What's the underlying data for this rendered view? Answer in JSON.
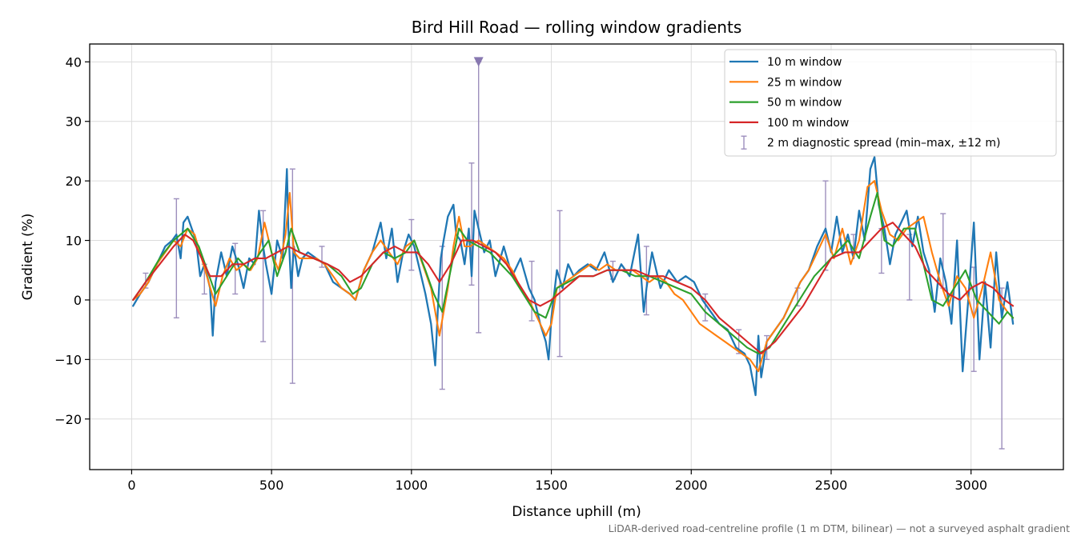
{
  "chart_data": {
    "type": "line",
    "title": "Bird Hill Road — rolling window gradients",
    "xlabel": "Distance uphill (m)",
    "ylabel": "Gradient (%)",
    "footnote": "LiDAR-derived road-centreline profile (1 m DTM, bilinear) — not a surveyed asphalt gradient",
    "xlim": [
      -150,
      3330
    ],
    "ylim": [
      -28.5,
      43
    ],
    "xticks": [
      0,
      500,
      1000,
      1500,
      2000,
      2500,
      3000
    ],
    "yticks": [
      -20,
      -10,
      0,
      10,
      20,
      30,
      40
    ],
    "xtick_labels": [
      "0",
      "500",
      "1000",
      "1500",
      "2000",
      "2500",
      "3000"
    ],
    "ytick_labels": [
      "−20",
      "−10",
      "0",
      "10",
      "20",
      "30",
      "40"
    ],
    "grid": true,
    "legend_position": "top-right",
    "series": [
      {
        "name": "10 m window",
        "color": "#1f77b4",
        "x": [
          5,
          30,
          60,
          90,
          120,
          145,
          160,
          175,
          185,
          200,
          215,
          230,
          245,
          260,
          280,
          290,
          300,
          320,
          340,
          360,
          380,
          400,
          420,
          440,
          455,
          470,
          480,
          500,
          520,
          540,
          555,
          560,
          570,
          580,
          595,
          610,
          630,
          660,
          690,
          720,
          750,
          780,
          800,
          830,
          860,
          890,
          910,
          930,
          950,
          970,
          990,
          1010,
          1030,
          1050,
          1070,
          1085,
          1095,
          1105,
          1115,
          1130,
          1150,
          1160,
          1175,
          1190,
          1205,
          1215,
          1225,
          1240,
          1260,
          1280,
          1300,
          1330,
          1360,
          1390,
          1420,
          1440,
          1460,
          1480,
          1490,
          1500,
          1520,
          1540,
          1560,
          1580,
          1600,
          1630,
          1660,
          1690,
          1720,
          1750,
          1780,
          1810,
          1830,
          1840,
          1860,
          1890,
          1920,
          1950,
          1980,
          2010,
          2040,
          2070,
          2100,
          2130,
          2160,
          2190,
          2210,
          2230,
          2240,
          2250,
          2270,
          2300,
          2330,
          2360,
          2390,
          2420,
          2450,
          2480,
          2500,
          2520,
          2540,
          2560,
          2580,
          2600,
          2620,
          2640,
          2655,
          2670,
          2690,
          2710,
          2730,
          2750,
          2770,
          2790,
          2810,
          2830,
          2850,
          2870,
          2890,
          2910,
          2930,
          2950,
          2970,
          2990,
          3010,
          3030,
          3050,
          3070,
          3090,
          3110,
          3130,
          3150
        ],
        "y": [
          -1,
          1,
          3,
          6,
          9,
          10,
          11,
          7,
          13,
          14,
          12,
          10,
          4,
          6,
          2,
          -6,
          3,
          8,
          4,
          9,
          6,
          2,
          7,
          6,
          15,
          9,
          6,
          1,
          10,
          7,
          22,
          12,
          2,
          9,
          4,
          7,
          8,
          7,
          6,
          3,
          2,
          1,
          0,
          5,
          8,
          13,
          7,
          12,
          3,
          8,
          11,
          9,
          5,
          1,
          -4,
          -11,
          -1,
          7,
          10,
          14,
          16,
          11,
          10,
          6,
          12,
          4,
          15,
          12,
          8,
          10,
          4,
          9,
          4,
          7,
          2,
          0,
          -4,
          -7,
          -10,
          -3,
          5,
          2,
          6,
          4,
          5,
          6,
          5,
          8,
          3,
          6,
          4,
          11,
          -2,
          2,
          8,
          2,
          5,
          3,
          4,
          3,
          0,
          -2,
          -4,
          -5,
          -8,
          -9,
          -11,
          -16,
          -6,
          -13,
          -7,
          -5,
          -3,
          0,
          3,
          5,
          9,
          12,
          8,
          14,
          8,
          11,
          7,
          15,
          10,
          22,
          24,
          16,
          12,
          6,
          11,
          13,
          15,
          9,
          14,
          8,
          5,
          -2,
          7,
          3,
          -4,
          10,
          -12,
          0,
          13,
          -10,
          3,
          -8,
          8,
          -3,
          3,
          -4
        ],
        "stroke_width": 2.3
      },
      {
        "name": "25 m window",
        "color": "#ff7f0e",
        "x": [
          5,
          30,
          60,
          90,
          120,
          150,
          175,
          200,
          225,
          250,
          275,
          300,
          325,
          350,
          375,
          400,
          425,
          450,
          475,
          500,
          525,
          550,
          565,
          580,
          600,
          630,
          660,
          690,
          720,
          750,
          780,
          800,
          830,
          860,
          890,
          920,
          950,
          980,
          1010,
          1040,
          1070,
          1100,
          1130,
          1150,
          1170,
          1190,
          1210,
          1240,
          1270,
          1300,
          1330,
          1360,
          1390,
          1420,
          1450,
          1480,
          1500,
          1520,
          1550,
          1580,
          1610,
          1640,
          1670,
          1700,
          1730,
          1760,
          1790,
          1820,
          1850,
          1880,
          1910,
          1940,
          1970,
          2000,
          2030,
          2060,
          2090,
          2120,
          2150,
          2180,
          2210,
          2240,
          2270,
          2300,
          2330,
          2360,
          2390,
          2420,
          2450,
          2480,
          2510,
          2540,
          2570,
          2600,
          2630,
          2655,
          2680,
          2710,
          2740,
          2770,
          2800,
          2830,
          2860,
          2890,
          2920,
          2950,
          2980,
          3010,
          3040,
          3070,
          3100,
          3130,
          3150
        ],
        "y": [
          0,
          1,
          3,
          6,
          8,
          10,
          9,
          12,
          11,
          7,
          3,
          -1,
          4,
          7,
          5,
          6,
          5,
          7,
          13,
          8,
          5,
          11,
          18,
          8,
          7,
          7,
          7,
          6,
          4,
          2,
          1,
          0,
          5,
          8,
          10,
          8,
          6,
          9,
          10,
          6,
          2,
          -6,
          2,
          9,
          14,
          9,
          9,
          10,
          9,
          8,
          7,
          5,
          2,
          0,
          -3,
          -6,
          -4,
          2,
          3,
          4,
          5,
          6,
          5,
          6,
          5,
          5,
          5,
          4,
          3,
          4,
          3,
          1,
          0,
          -2,
          -4,
          -5,
          -6,
          -7,
          -8,
          -9,
          -10,
          -12,
          -7,
          -5,
          -3,
          0,
          3,
          5,
          8,
          11,
          7,
          12,
          6,
          10,
          19,
          20,
          15,
          11,
          10,
          12,
          13,
          14,
          8,
          3,
          -1,
          4,
          2,
          -3,
          2,
          8,
          0,
          -2,
          -3
        ],
        "stroke_width": 2.1
      },
      {
        "name": "50 m window",
        "color": "#2ca02c",
        "x": [
          5,
          50,
          100,
          150,
          200,
          240,
          270,
          300,
          340,
          380,
          420,
          460,
          490,
          520,
          550,
          570,
          600,
          650,
          700,
          750,
          790,
          820,
          860,
          900,
          940,
          980,
          1010,
          1050,
          1080,
          1110,
          1140,
          1170,
          1200,
          1240,
          1280,
          1320,
          1360,
          1400,
          1440,
          1480,
          1520,
          1560,
          1600,
          1650,
          1700,
          1750,
          1800,
          1850,
          1900,
          1950,
          2000,
          2050,
          2100,
          2150,
          2200,
          2240,
          2280,
          2320,
          2360,
          2400,
          2440,
          2480,
          2520,
          2560,
          2600,
          2640,
          2665,
          2690,
          2720,
          2760,
          2800,
          2830,
          2860,
          2900,
          2940,
          2980,
          3020,
          3060,
          3100,
          3130,
          3150
        ],
        "y": [
          0,
          3,
          7,
          10,
          12,
          9,
          5,
          1,
          4,
          7,
          5,
          8,
          10,
          4,
          8,
          12,
          8,
          7,
          6,
          4,
          1,
          2,
          6,
          8,
          7,
          8,
          10,
          5,
          1,
          -2,
          5,
          12,
          10,
          9,
          8,
          6,
          4,
          1,
          -2,
          -3,
          2,
          3,
          4,
          4,
          5,
          5,
          4,
          4,
          3,
          2,
          1,
          -2,
          -4,
          -6,
          -8,
          -9,
          -8,
          -5,
          -2,
          1,
          4,
          6,
          8,
          10,
          7,
          14,
          18,
          10,
          9,
          12,
          12,
          6,
          0,
          -1,
          2,
          5,
          0,
          -2,
          -4,
          -2,
          -3
        ],
        "stroke_width": 2.1
      },
      {
        "name": "100 m window",
        "color": "#d62728",
        "x": [
          5,
          50,
          100,
          150,
          190,
          220,
          250,
          280,
          320,
          360,
          400,
          440,
          480,
          520,
          560,
          600,
          650,
          700,
          740,
          780,
          820,
          860,
          900,
          940,
          980,
          1020,
          1060,
          1100,
          1140,
          1180,
          1220,
          1260,
          1300,
          1340,
          1380,
          1420,
          1460,
          1500,
          1550,
          1600,
          1650,
          1700,
          1750,
          1800,
          1850,
          1900,
          1950,
          2000,
          2050,
          2100,
          2150,
          2200,
          2250,
          2300,
          2350,
          2400,
          2450,
          2500,
          2550,
          2600,
          2640,
          2680,
          2720,
          2760,
          2800,
          2840,
          2880,
          2920,
          2960,
          3000,
          3040,
          3080,
          3120,
          3150
        ],
        "y": [
          0,
          3,
          6,
          9,
          11,
          10,
          7,
          4,
          4,
          6,
          6,
          7,
          7,
          8,
          9,
          8,
          7,
          6,
          5,
          3,
          4,
          6,
          8,
          9,
          8,
          8,
          6,
          3,
          6,
          10,
          10,
          9,
          8,
          6,
          3,
          0,
          -1,
          0,
          2,
          4,
          4,
          5,
          5,
          5,
          4,
          4,
          3,
          2,
          0,
          -3,
          -5,
          -7,
          -9,
          -7,
          -4,
          -1,
          3,
          7,
          8,
          8,
          10,
          12,
          13,
          11,
          9,
          5,
          3,
          1,
          0,
          2,
          3,
          2,
          0,
          -1
        ],
        "stroke_width": 2.1
      }
    ],
    "diagnostic_spread": {
      "name": "2 m diagnostic spread (min–max, ±12 m)",
      "color": "#9d8fbd",
      "bars": [
        {
          "x": 50,
          "y": 3,
          "low": 2,
          "high": 4.5
        },
        {
          "x": 160,
          "y": 9,
          "low": -3,
          "high": 17
        },
        {
          "x": 260,
          "y": 4,
          "low": 1,
          "high": 6
        },
        {
          "x": 370,
          "y": 5,
          "low": 1,
          "high": 9.5
        },
        {
          "x": 470,
          "y": 5,
          "low": -7,
          "high": 15
        },
        {
          "x": 575,
          "y": 5,
          "low": -14,
          "high": 22
        },
        {
          "x": 680,
          "y": 7,
          "low": 5.5,
          "high": 9
        },
        {
          "x": 1000,
          "y": 9,
          "low": 5,
          "high": 13.5
        },
        {
          "x": 1110,
          "y": 0,
          "low": -15,
          "high": 9
        },
        {
          "x": 1215,
          "y": 10,
          "low": 2.5,
          "high": 23
        },
        {
          "x": 1240,
          "y": 8,
          "low": -5.5,
          "high": 40
        },
        {
          "x": 1430,
          "y": 2,
          "low": -3.5,
          "high": 6.5
        },
        {
          "x": 1530,
          "y": 2,
          "low": -9.5,
          "high": 15
        },
        {
          "x": 1720,
          "y": 5,
          "low": 3.5,
          "high": 6.5
        },
        {
          "x": 1840,
          "y": 4,
          "low": -2.5,
          "high": 9
        },
        {
          "x": 2050,
          "y": -1,
          "low": -3.5,
          "high": 1
        },
        {
          "x": 2170,
          "y": -6,
          "low": -9,
          "high": -5
        },
        {
          "x": 2270,
          "y": -8,
          "low": -10,
          "high": -6
        },
        {
          "x": 2380,
          "y": 0,
          "low": -1,
          "high": 2
        },
        {
          "x": 2480,
          "y": 6,
          "low": 5,
          "high": 20
        },
        {
          "x": 2580,
          "y": 9,
          "low": 8,
          "high": 11
        },
        {
          "x": 2680,
          "y": 8,
          "low": 4.5,
          "high": 12
        },
        {
          "x": 2780,
          "y": 5,
          "low": 0,
          "high": 11
        },
        {
          "x": 2900,
          "y": 6,
          "low": 2,
          "high": 14.5
        },
        {
          "x": 3010,
          "y": 0,
          "low": -12,
          "high": 5.5
        },
        {
          "x": 3110,
          "y": -3,
          "low": -25,
          "high": 2
        }
      ],
      "overflow_marker": {
        "x": 1240,
        "y": 40
      }
    }
  }
}
